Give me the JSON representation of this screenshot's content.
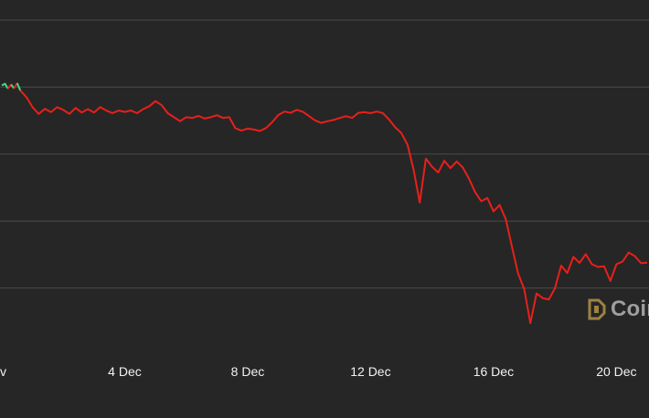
{
  "chart_data": {
    "type": "line",
    "title": "",
    "xlabel": "",
    "ylabel": "",
    "x_tick_labels": [
      "v",
      "4 Dec",
      "8 Dec",
      "12 Dec",
      "16 Dec",
      "20 Dec"
    ],
    "x_tick_days": [
      0,
      4,
      8,
      12,
      16,
      20
    ],
    "xlim": [
      0,
      21
    ],
    "ylim": [
      0,
      100
    ],
    "grid": true,
    "y_gridlines": [
      20,
      40,
      60,
      80,
      100
    ],
    "colors": {
      "background": "#262626",
      "grid": "#4a4a4a",
      "up": "#3ddc84",
      "down": "#e8201a"
    },
    "series": [
      {
        "x": [
          0.0,
          0.1,
          0.2,
          0.3,
          0.4,
          0.5,
          0.6,
          0.8,
          1.0,
          1.2,
          1.4,
          1.6,
          1.8,
          2.0,
          2.2,
          2.4,
          2.6,
          2.8,
          3.0,
          3.2,
          3.4,
          3.6,
          3.8,
          4.0,
          4.2,
          4.4,
          4.6,
          4.8,
          5.0,
          5.2,
          5.4,
          5.6,
          5.8,
          6.0,
          6.2,
          6.4,
          6.6,
          6.8,
          7.0,
          7.2,
          7.4,
          7.6,
          7.8,
          8.0,
          8.2,
          8.4,
          8.6,
          8.8,
          9.0,
          9.2,
          9.4,
          9.6,
          9.8,
          10.0,
          10.2,
          10.4,
          10.6,
          10.8,
          11.0,
          11.2,
          11.4,
          11.6,
          11.8,
          12.0,
          12.2,
          12.4,
          12.6,
          12.8,
          13.0,
          13.2,
          13.4,
          13.6,
          13.8,
          14.0,
          14.2,
          14.4,
          14.6,
          14.8,
          15.0,
          15.2,
          15.4,
          15.6,
          15.8,
          16.0,
          16.2,
          16.4,
          16.6,
          16.8,
          17.0,
          17.2,
          17.4,
          17.6,
          17.8,
          18.0,
          18.2,
          18.4,
          18.6,
          18.8,
          19.0,
          19.2,
          19.4,
          19.6,
          19.8,
          20.0,
          20.2,
          20.4,
          20.6,
          20.8,
          21.0
        ],
        "y": [
          80.5,
          81,
          79.5,
          80.8,
          79.6,
          81.2,
          79,
          77,
          74,
          72,
          73.5,
          72.5,
          74,
          73.2,
          72,
          73.8,
          72.4,
          73.4,
          72.4,
          74,
          73,
          72.2,
          73,
          72.6,
          73,
          72.2,
          73.4,
          74.3,
          75.8,
          74.6,
          72.2,
          71,
          69.8,
          71,
          70.8,
          71.4,
          70.6,
          71,
          71.6,
          70.8,
          71,
          67.7,
          67,
          67.6,
          67.3,
          66.9,
          67.8,
          69.5,
          71.7,
          72.7,
          72.3,
          73.2,
          72.6,
          71.3,
          70,
          69.3,
          69.8,
          70.2,
          70.8,
          71.3,
          70.8,
          72.3,
          72.5,
          72.2,
          72.7,
          72.2,
          70.3,
          68,
          66.3,
          62.8,
          55.3,
          45.5,
          58.6,
          56.2,
          54.5,
          58,
          55.8,
          57.8,
          56,
          52.7,
          48.7,
          45.9,
          46.9,
          42.9,
          44.8,
          40.5,
          32.3,
          24.3,
          19.7,
          9.5,
          18.4,
          17,
          16.6,
          19.9,
          26.7,
          24.5,
          29.3,
          27.5,
          30.1,
          27.1,
          26.3,
          26.5,
          22.1,
          27.1,
          27.9,
          30.6,
          29.5,
          27.4,
          27.6
        ]
      }
    ]
  },
  "watermark": {
    "text": "Coin",
    "icon": "coindesk-logo-icon",
    "color": "#c8a14a"
  }
}
